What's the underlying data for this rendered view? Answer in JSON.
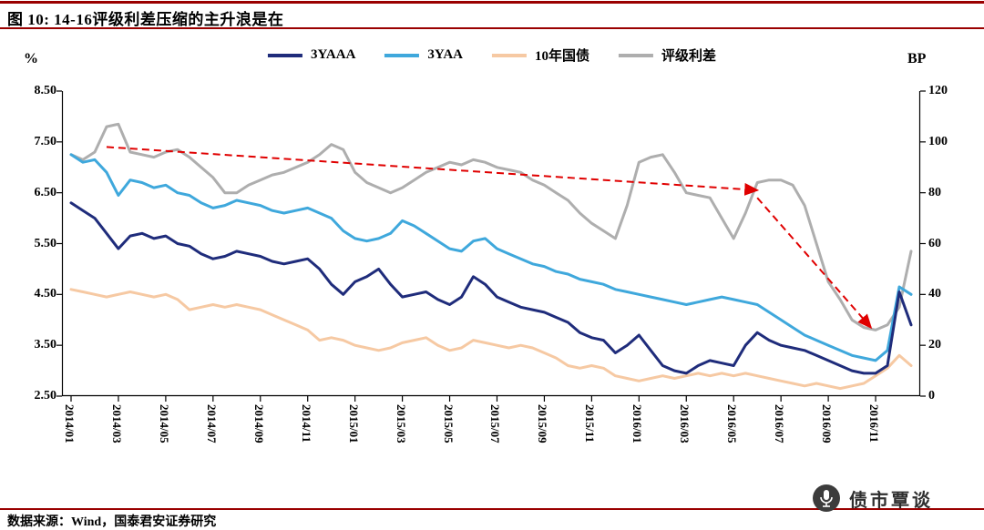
{
  "header": {
    "title": "图 10: 14-16评级利差压缩的主升浪是在"
  },
  "footer": {
    "source": "数据来源：Wind，国泰君安证券研究",
    "watermark": "债市覃谈"
  },
  "chart_data": {
    "type": "line",
    "title": "14-16评级利差压缩的主升浪是在",
    "x_start_label": "2014/01",
    "x_step_months": 0.5,
    "x_ticks": [
      "2014/01",
      "2014/03",
      "2014/05",
      "2014/07",
      "2014/09",
      "2014/11",
      "2015/01",
      "2015/03",
      "2015/05",
      "2015/07",
      "2015/09",
      "2015/11",
      "2016/01",
      "2016/03",
      "2016/05",
      "2016/07",
      "2016/09",
      "2016/11"
    ],
    "left_axis": {
      "unit": "%",
      "min": 2.5,
      "max": 8.5,
      "tick_labels": [
        "8.50",
        "7.50",
        "6.50",
        "5.50",
        "4.50",
        "3.50",
        "2.50"
      ]
    },
    "right_axis": {
      "unit": "BP",
      "min": 0,
      "max": 120,
      "tick_labels": [
        "120",
        "100",
        "80",
        "60",
        "40",
        "20",
        "0"
      ]
    },
    "series": [
      {
        "name": "3YAAA",
        "axis": "left",
        "color": "#1f2c7b",
        "width": 3,
        "values": [
          6.3,
          6.15,
          6.0,
          5.7,
          5.4,
          5.65,
          5.7,
          5.6,
          5.65,
          5.5,
          5.45,
          5.3,
          5.2,
          5.25,
          5.35,
          5.3,
          5.25,
          5.15,
          5.1,
          5.15,
          5.2,
          5.0,
          4.7,
          4.5,
          4.75,
          4.85,
          5.0,
          4.7,
          4.45,
          4.5,
          4.55,
          4.4,
          4.3,
          4.45,
          4.85,
          4.7,
          4.45,
          4.35,
          4.25,
          4.2,
          4.15,
          4.05,
          3.95,
          3.75,
          3.65,
          3.6,
          3.35,
          3.5,
          3.7,
          3.4,
          3.1,
          3.0,
          2.95,
          3.1,
          3.2,
          3.15,
          3.1,
          3.5,
          3.75,
          3.6,
          3.5,
          3.45,
          3.4,
          3.3,
          3.2,
          3.1,
          3.0,
          2.95,
          2.95,
          3.1,
          4.55,
          3.9
        ]
      },
      {
        "name": "3YAA",
        "axis": "left",
        "color": "#3fa8dc",
        "width": 3,
        "values": [
          7.25,
          7.1,
          7.15,
          6.9,
          6.45,
          6.75,
          6.7,
          6.6,
          6.65,
          6.5,
          6.45,
          6.3,
          6.2,
          6.25,
          6.35,
          6.3,
          6.25,
          6.15,
          6.1,
          6.15,
          6.2,
          6.1,
          6.0,
          5.75,
          5.6,
          5.55,
          5.6,
          5.7,
          5.95,
          5.85,
          5.7,
          5.55,
          5.4,
          5.35,
          5.55,
          5.6,
          5.4,
          5.3,
          5.2,
          5.1,
          5.05,
          4.95,
          4.9,
          4.8,
          4.75,
          4.7,
          4.6,
          4.55,
          4.5,
          4.45,
          4.4,
          4.35,
          4.3,
          4.35,
          4.4,
          4.45,
          4.4,
          4.35,
          4.3,
          4.15,
          4.0,
          3.85,
          3.7,
          3.6,
          3.5,
          3.4,
          3.3,
          3.25,
          3.2,
          3.4,
          4.65,
          4.5
        ]
      },
      {
        "name": "10年国债",
        "axis": "left",
        "color": "#f6c9a3",
        "width": 3,
        "values": [
          4.6,
          4.55,
          4.5,
          4.45,
          4.5,
          4.55,
          4.5,
          4.45,
          4.5,
          4.4,
          4.2,
          4.25,
          4.3,
          4.25,
          4.3,
          4.25,
          4.2,
          4.1,
          4.0,
          3.9,
          3.8,
          3.6,
          3.65,
          3.6,
          3.5,
          3.45,
          3.4,
          3.45,
          3.55,
          3.6,
          3.65,
          3.5,
          3.4,
          3.45,
          3.6,
          3.55,
          3.5,
          3.45,
          3.5,
          3.45,
          3.35,
          3.25,
          3.1,
          3.05,
          3.1,
          3.05,
          2.9,
          2.85,
          2.8,
          2.85,
          2.9,
          2.85,
          2.9,
          2.95,
          2.9,
          2.95,
          2.9,
          2.95,
          2.9,
          2.85,
          2.8,
          2.75,
          2.7,
          2.75,
          2.7,
          2.65,
          2.7,
          2.75,
          2.9,
          3.05,
          3.3,
          3.1
        ]
      },
      {
        "name": "评级利差",
        "axis": "right",
        "color": "#aeaeae",
        "width": 3,
        "values": [
          95,
          93,
          96,
          106,
          107,
          96,
          95,
          94,
          96,
          97,
          94,
          90,
          86,
          80,
          80,
          83,
          85,
          87,
          88,
          90,
          92,
          95,
          99,
          97,
          88,
          84,
          82,
          80,
          82,
          85,
          88,
          90,
          92,
          91,
          93,
          92,
          90,
          89,
          88,
          85,
          83,
          80,
          77,
          72,
          68,
          65,
          62,
          75,
          92,
          94,
          95,
          88,
          80,
          79,
          78,
          70,
          62,
          72,
          84,
          85,
          85,
          83,
          75,
          60,
          45,
          38,
          30,
          27,
          26,
          28,
          35,
          57
        ]
      }
    ],
    "annotation": {
      "type": "dashed-arrow",
      "color": "#e00000",
      "axis": "right",
      "segments": [
        {
          "from_month": 1.5,
          "from_bp": 98,
          "to_month": 29,
          "to_bp": 81
        },
        {
          "from_month": 29,
          "from_bp": 78,
          "to_month": 33.8,
          "to_bp": 27
        }
      ]
    }
  }
}
